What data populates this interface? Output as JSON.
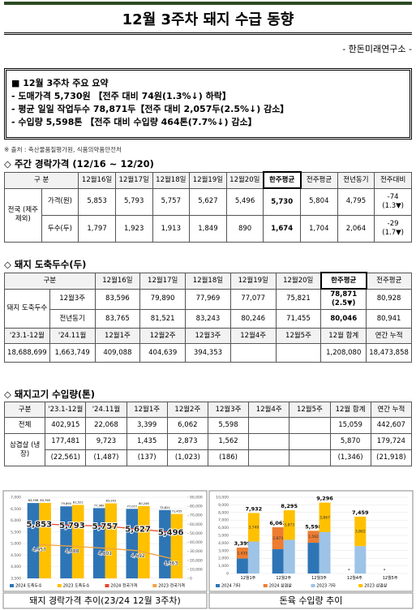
{
  "header": {
    "title": "12월 3주차 돼지 수급 동향",
    "source_org": "- 한돈미래연구소 -"
  },
  "summary": {
    "heading": "■ 12월 3주차 주요 요약",
    "lines": [
      "- 도매가격 5,730원 【전주 대비 74원(1.3%↓) 하락】",
      "- 평균 일일 작업두수 78,871두【전주 대비 2,057두(2.5%↓) 감소】",
      "- 수입량 5,598톤 【전주 대비 수입량 464톤(7.7%↓) 감소】"
    ]
  },
  "note": "※ 출처 : 축산물품질평가원, 식품의약품안전처",
  "price_table": {
    "heading": "◇ 주간 경락가격 (12/16 ~ 12/20)",
    "columns": [
      "구 분",
      "12월16일",
      "12월17일",
      "12월18일",
      "12월19일",
      "12월20일",
      "한주평균",
      "전주평균",
      "전년동기",
      "전주대비"
    ],
    "group": "전국 (제주 제외)",
    "rows": [
      {
        "label": "가격(원)",
        "cells": [
          "5,853",
          "5,793",
          "5,757",
          "5,627",
          "5,496",
          "5,730",
          "5,804",
          "4,795",
          "-74 (1.3▼)"
        ]
      },
      {
        "label": "두수(두)",
        "cells": [
          "1,797",
          "1,923",
          "1,913",
          "1,849",
          "890",
          "1,674",
          "1,704",
          "2,064",
          "-29 (1.7▼)"
        ]
      }
    ]
  },
  "slaughter_table": {
    "heading": "◇ 돼지 도축두수(두)",
    "columns": [
      "구분",
      "12월16일",
      "12월17일",
      "12월18일",
      "12월19일",
      "12월20일",
      "한주평균",
      "전주평균"
    ],
    "group": "돼지 도축두수",
    "rows": [
      {
        "label": "12월3주",
        "cells": [
          "83,596",
          "79,890",
          "77,969",
          "77,077",
          "75,821",
          "78,871 (2.5▼)",
          "80,928"
        ]
      },
      {
        "label": "전년동기",
        "cells": [
          "83,765",
          "81,521",
          "83,243",
          "80,246",
          "71,455",
          "80,046",
          "80,941"
        ]
      }
    ],
    "columns2": [
      "'23.1-12월",
      "'24.11월",
      "12월1주",
      "12월2주",
      "12월3주",
      "12월4주",
      "12월5주",
      "12월 합계",
      "연간 누적"
    ],
    "cells2": [
      "18,688,699",
      "1,663,749",
      "409,088",
      "404,639",
      "394,353",
      null,
      null,
      "1,208,080",
      "18,473,858"
    ]
  },
  "import_table": {
    "heading": "◇ 돼지고기 수입량(톤)",
    "columns": [
      "구분",
      "'23.1-12월",
      "'24.11월",
      "12월1주",
      "12월2주",
      "12월3주",
      "12월4주",
      "12월5주",
      "12월 합계",
      "연간 누적"
    ],
    "rows": [
      {
        "label": "전체",
        "cells": [
          "402,915",
          "22,068",
          "3,399",
          "6,062",
          "5,598",
          null,
          null,
          "15,059",
          "442,607"
        ]
      },
      {
        "label": "삼겹살 (냉장)",
        "cells": [
          "177,481",
          "9,723",
          "1,435",
          "2,873",
          "1,562",
          null,
          null,
          "5,870",
          "179,724"
        ],
        "sub_cells": [
          "(22,561)",
          "(1,487)",
          "(137)",
          "(1,023)",
          "(186)",
          null,
          null,
          "(1,346)",
          "(21,918)"
        ]
      }
    ]
  },
  "chart_data": [
    {
      "type": "combo",
      "title": "돼지 경락가격 추이(23/24 12월 3주차)",
      "ylim": [
        3500,
        7000
      ],
      "yticks": [
        {
          "value": 3500,
          "label": "3,500"
        },
        {
          "value": 4000,
          "label": "4,000"
        },
        {
          "value": 4500,
          "label": "4,500"
        },
        {
          "value": 5000,
          "label": "5,000"
        },
        {
          "value": 5500,
          "label": "5,500"
        },
        {
          "value": 6000,
          "label": "6,000"
        },
        {
          "value": 6500,
          "label": "6,500"
        },
        {
          "value": 7000,
          "label": "7,000"
        }
      ],
      "y2lim": [
        0,
        90000
      ],
      "y2ticks": [
        0,
        {
          "value": 10000,
          "label": "10,000"
        },
        {
          "value": 20000,
          "label": "20,000"
        },
        {
          "value": 30000,
          "label": "30,000"
        },
        {
          "value": 40000,
          "label": "40,000"
        },
        {
          "value": 50000,
          "label": "50,000"
        },
        {
          "value": 60000,
          "label": "60,000"
        },
        {
          "value": 70000,
          "label": "70,000"
        },
        {
          "value": 80000,
          "label": "80,000"
        },
        {
          "value": 90000,
          "label": "90,000"
        }
      ],
      "grid": true,
      "series": [
        {
          "name": "2024 도축두수",
          "type": "bar",
          "axis": "y2",
          "color": "#2e75b6",
          "values": [
            83596,
            79890,
            77969,
            77077,
            75821
          ],
          "value_labels": [
            "83,596",
            "79,890",
            "77,969",
            "77,077",
            "75,821"
          ]
        },
        {
          "name": "2023 도축두수",
          "type": "bar",
          "axis": "y2",
          "color": "#ffc000",
          "values": [
            83765,
            81521,
            83243,
            80246,
            71455
          ],
          "value_labels": [
            "83,765",
            "81,521",
            "83,243",
            "80,246",
            "71,455"
          ]
        },
        {
          "name": "2024 전국가격",
          "type": "line",
          "color": "#e8452c",
          "values": [
            5853,
            5793,
            5757,
            5627,
            5496
          ],
          "value_labels": [
            "5,853",
            "5,793",
            "5,757",
            "5,627",
            "5,496"
          ]
        },
        {
          "name": "2023 전국가격",
          "type": "line",
          "color": "#f4a340",
          "values": [
            4957,
            4888,
            4801,
            4692,
            4363
          ],
          "value_labels": [
            "4,957",
            "4,888",
            "4,801",
            "4,692",
            "4,363"
          ]
        }
      ]
    },
    {
      "type": "stacked_bar",
      "title": "돈육 수입량 추이",
      "categories": [
        "12월1주",
        "12월2주",
        "12월3주",
        "12월4주",
        "12월5주"
      ],
      "ylim": [
        0,
        10000
      ],
      "yticks": [
        0,
        {
          "value": 1000,
          "label": "1,000"
        },
        {
          "value": 2000,
          "label": "2,000"
        },
        {
          "value": 3000,
          "label": "3,000"
        },
        {
          "value": 4000,
          "label": "4,000"
        },
        {
          "value": 5000,
          "label": "5,000"
        },
        {
          "value": 6000,
          "label": "6,000"
        },
        {
          "value": 7000,
          "label": "7,000"
        },
        {
          "value": 8000,
          "label": "8,000"
        },
        {
          "value": 9000,
          "label": "9,000"
        },
        {
          "value": 10000,
          "label": "10,000"
        }
      ],
      "grid": true,
      "series": [
        {
          "name": "2024 기타",
          "stack": "2024",
          "color": "#2e75b6",
          "values": [
            1964,
            3189,
            4036,
            null,
            null
          ]
        },
        {
          "name": "2024 삼겹살",
          "stack": "2024",
          "color": "#ed7d31",
          "values": [
            1435,
            2873,
            1562,
            null,
            null
          ],
          "value_labels": [
            "1,435",
            "2,873",
            "1,562",
            null,
            null
          ]
        },
        {
          "name": "2023 기타",
          "stack": "2023",
          "color": "#9dc3e6",
          "values": [
            4192,
            4422,
            5429,
            3597,
            null
          ]
        },
        {
          "name": "2023 삼겹살",
          "stack": "2023",
          "color": "#ffc000",
          "values": [
            3740,
            3873,
            3867,
            3862,
            null
          ],
          "value_labels": [
            "3,740",
            "3,873",
            "3,867",
            "3,862",
            null
          ]
        }
      ],
      "totals": [
        {
          "values": [
            3399,
            6062,
            5598,
            null,
            null
          ],
          "value_labels": [
            "3,399",
            "6,062",
            "5,598",
            "-",
            "-"
          ]
        },
        {
          "values": [
            7932,
            8295,
            9296,
            7459,
            null
          ],
          "value_labels": [
            "7,932",
            "8,295",
            "9,296",
            "7,459",
            null
          ]
        }
      ]
    }
  ]
}
